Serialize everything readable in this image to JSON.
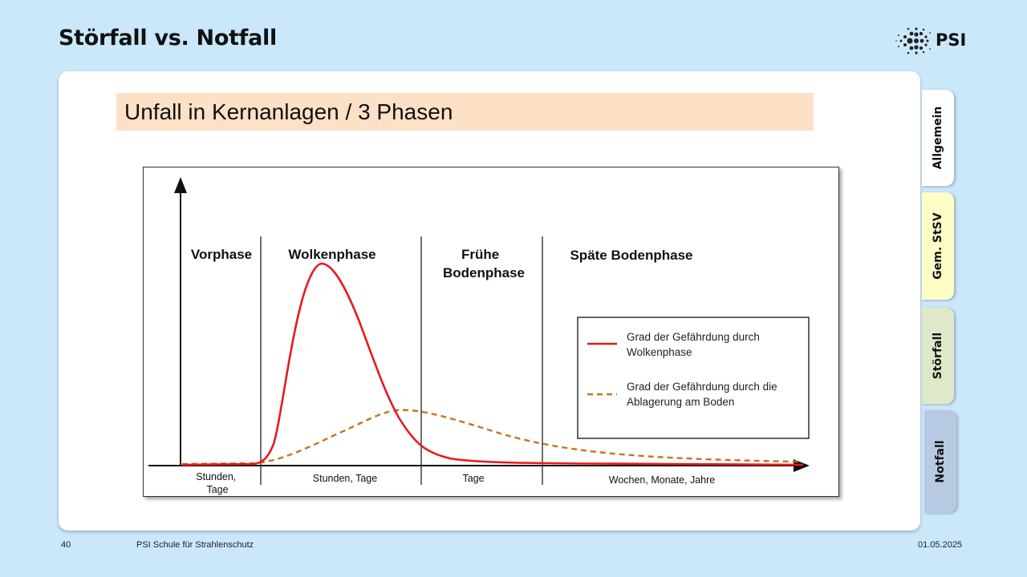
{
  "slide": {
    "title": "Störfall vs. Notfall",
    "section_title": "Unfall in Kernanlagen / 3 Phasen"
  },
  "logo": {
    "text": "PSI"
  },
  "tabs": [
    {
      "label": "Allgemein"
    },
    {
      "label": "Gem. StSV"
    },
    {
      "label": "Störfall"
    },
    {
      "label": "Notfall"
    }
  ],
  "diagram": {
    "phases": [
      {
        "name": "Vorphase",
        "duration": "Stunden,\nTage"
      },
      {
        "name": "Wolkenphase",
        "duration": "Stunden, Tage"
      },
      {
        "name": "Frühe\nBodenphase",
        "duration": "Tage"
      },
      {
        "name": "Späte Bodenphase",
        "duration": "Wochen, Monate, Jahre"
      }
    ],
    "legend": [
      {
        "label": "Grad der Gefährdung durch\nWolkenphase",
        "color": "#e8191e",
        "style": "solid"
      },
      {
        "label": "Grad der Gefährdung durch die\nAblagerung am Boden",
        "color": "#c8731f",
        "style": "dashed"
      }
    ]
  },
  "footer": {
    "page_number": "40",
    "organization": "PSI Schule für Strahlenschutz",
    "date": "01.05.2025"
  }
}
